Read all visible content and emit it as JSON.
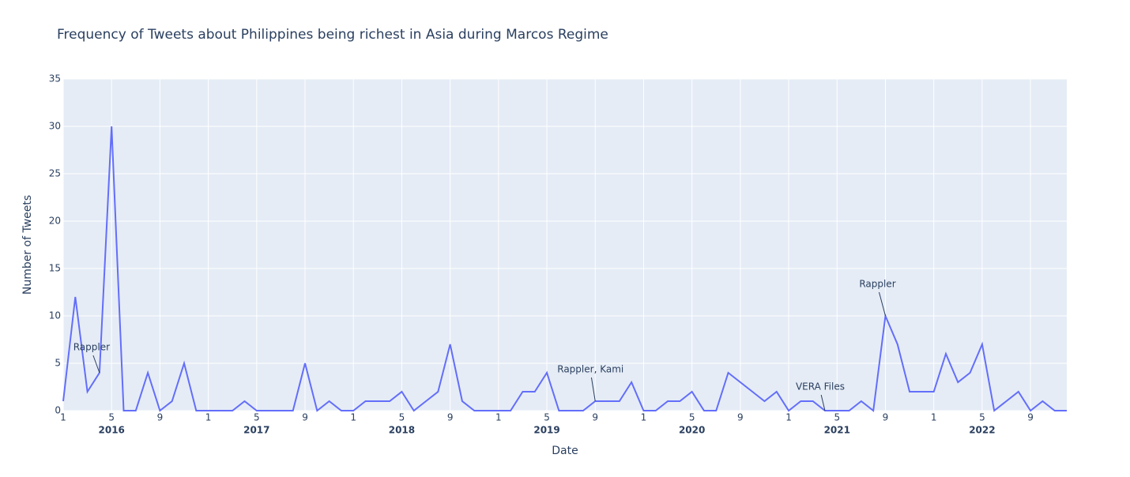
{
  "chart_data": {
    "type": "line",
    "title": "Frequency of Tweets about Philippines being richest in Asia during Marcos Regime",
    "x_label": "Date",
    "y_label": "Number of Tweets",
    "x": [
      "2016-01",
      "2016-02",
      "2016-03",
      "2016-04",
      "2016-05",
      "2016-06",
      "2016-07",
      "2016-08",
      "2016-09",
      "2016-10",
      "2016-11",
      "2016-12",
      "2017-01",
      "2017-02",
      "2017-03",
      "2017-04",
      "2017-05",
      "2017-06",
      "2017-07",
      "2017-08",
      "2017-09",
      "2017-10",
      "2017-11",
      "2017-12",
      "2018-01",
      "2018-02",
      "2018-03",
      "2018-04",
      "2018-05",
      "2018-06",
      "2018-07",
      "2018-08",
      "2018-09",
      "2018-10",
      "2018-11",
      "2018-12",
      "2019-01",
      "2019-02",
      "2019-03",
      "2019-04",
      "2019-05",
      "2019-06",
      "2019-07",
      "2019-08",
      "2019-09",
      "2019-10",
      "2019-11",
      "2019-12",
      "2020-01",
      "2020-02",
      "2020-03",
      "2020-04",
      "2020-05",
      "2020-06",
      "2020-07",
      "2020-08",
      "2020-09",
      "2020-10",
      "2020-11",
      "2020-12",
      "2021-01",
      "2021-02",
      "2021-03",
      "2021-04",
      "2021-05",
      "2021-06",
      "2021-07",
      "2021-08",
      "2021-09",
      "2021-10",
      "2021-11",
      "2021-12",
      "2022-01",
      "2022-02",
      "2022-03",
      "2022-04",
      "2022-05",
      "2022-06",
      "2022-07",
      "2022-08",
      "2022-09",
      "2022-10",
      "2022-11",
      "2022-12"
    ],
    "series": [
      {
        "name": "Tweets",
        "color": "#636efa",
        "values": [
          1,
          12,
          2,
          4,
          30,
          0,
          0,
          4,
          0,
          1,
          5,
          0,
          0,
          0,
          0,
          1,
          0,
          0,
          0,
          0,
          5,
          0,
          1,
          0,
          0,
          1,
          1,
          1,
          2,
          0,
          1,
          2,
          7,
          1,
          0,
          0,
          0,
          0,
          2,
          2,
          4,
          0,
          0,
          0,
          1,
          1,
          1,
          3,
          0,
          0,
          1,
          1,
          2,
          0,
          0,
          4,
          3,
          2,
          1,
          2,
          0,
          1,
          1,
          0,
          0,
          0,
          1,
          0,
          10,
          7,
          2,
          2,
          2,
          6,
          3,
          4,
          7,
          0,
          1,
          2,
          0,
          1,
          0,
          0
        ]
      }
    ],
    "xlim": [
      "2016-01",
      "2022-12"
    ],
    "xticks": [
      {
        "value": "2016-01",
        "label": "1"
      },
      {
        "value": "2016-05",
        "label": "5"
      },
      {
        "value": "2016-09",
        "label": "9"
      },
      {
        "value": "2017-01",
        "label": "1"
      },
      {
        "value": "2017-05",
        "label": "5"
      },
      {
        "value": "2017-09",
        "label": "9"
      },
      {
        "value": "2018-01",
        "label": "1"
      },
      {
        "value": "2018-05",
        "label": "5"
      },
      {
        "value": "2018-09",
        "label": "9"
      },
      {
        "value": "2019-01",
        "label": "1"
      },
      {
        "value": "2019-05",
        "label": "5"
      },
      {
        "value": "2019-09",
        "label": "9"
      },
      {
        "value": "2020-01",
        "label": "1"
      },
      {
        "value": "2020-05",
        "label": "5"
      },
      {
        "value": "2020-09",
        "label": "9"
      },
      {
        "value": "2021-01",
        "label": "1"
      },
      {
        "value": "2021-05",
        "label": "5"
      },
      {
        "value": "2021-09",
        "label": "9"
      },
      {
        "value": "2022-01",
        "label": "1"
      },
      {
        "value": "2022-05",
        "label": "5"
      },
      {
        "value": "2022-09",
        "label": "9"
      }
    ],
    "xtick_years": [
      {
        "value": "2016-05",
        "label": "2016"
      },
      {
        "value": "2017-05",
        "label": "2017"
      },
      {
        "value": "2018-05",
        "label": "2018"
      },
      {
        "value": "2019-05",
        "label": "2019"
      },
      {
        "value": "2020-05",
        "label": "2020"
      },
      {
        "value": "2021-05",
        "label": "2021"
      },
      {
        "value": "2022-05",
        "label": "2022"
      }
    ],
    "ylim": [
      0,
      35
    ],
    "yticks": [
      0,
      5,
      10,
      15,
      20,
      25,
      30,
      35
    ],
    "grid": true,
    "annotations": [
      {
        "x": "2016-04",
        "y": 4,
        "text": "Rappler"
      },
      {
        "x": "2019-09",
        "y": 1,
        "text": "Rappler, Kami"
      },
      {
        "x": "2021-04",
        "y": 0,
        "text": "VERA Files"
      },
      {
        "x": "2021-09",
        "y": 10,
        "text": "Rappler"
      }
    ]
  }
}
